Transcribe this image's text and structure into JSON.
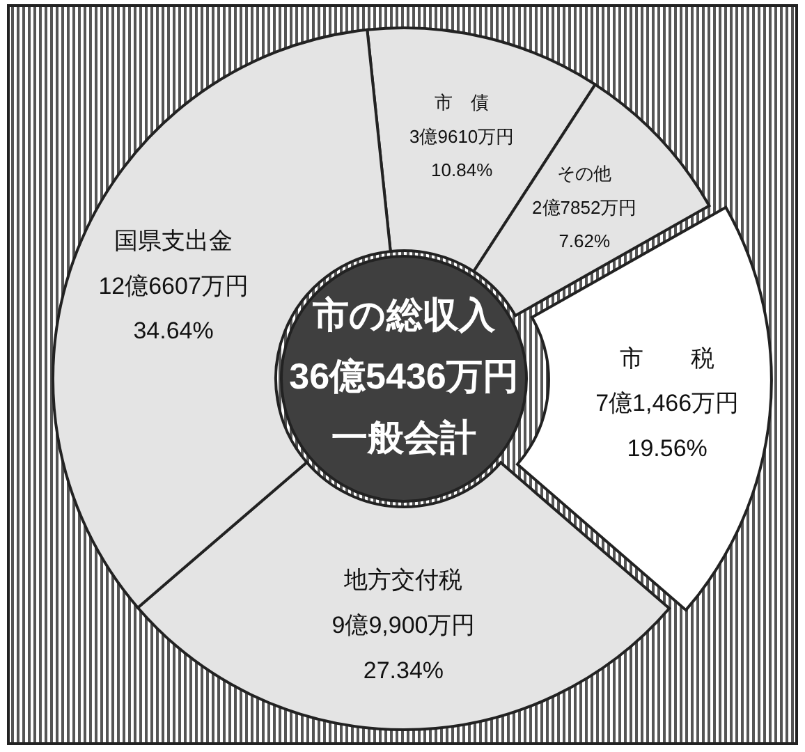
{
  "chart_data": {
    "type": "donut",
    "title": "市の総収入",
    "subtitle": "36億5436万円",
    "categories": [
      "市　債",
      "その他",
      "市　　税",
      "地方交付税",
      "国県支出金"
    ],
    "values": [
      10.84,
      7.62,
      19.56,
      27.34,
      34.64
    ],
    "colors": [
      "#e4e4e4",
      "#e4e4e4",
      "#ffffff",
      "#e4e4e4",
      "#e4e4e4"
    ],
    "value_labels": [
      "10.84%",
      "7.62%",
      "19.56%",
      "27.34%",
      "34.64%"
    ],
    "annotations": [
      {
        "text": "3億9610万円",
        "x": "市　債"
      },
      {
        "text": "2億7852万円",
        "x": "その他"
      },
      {
        "text": "7億1,466万円",
        "x": "市　　税"
      },
      {
        "text": "9億9,900万円",
        "x": "地方交付税"
      },
      {
        "text": "12億6607万円",
        "x": "国県支出金"
      },
      "一般会計"
    ]
  }
}
